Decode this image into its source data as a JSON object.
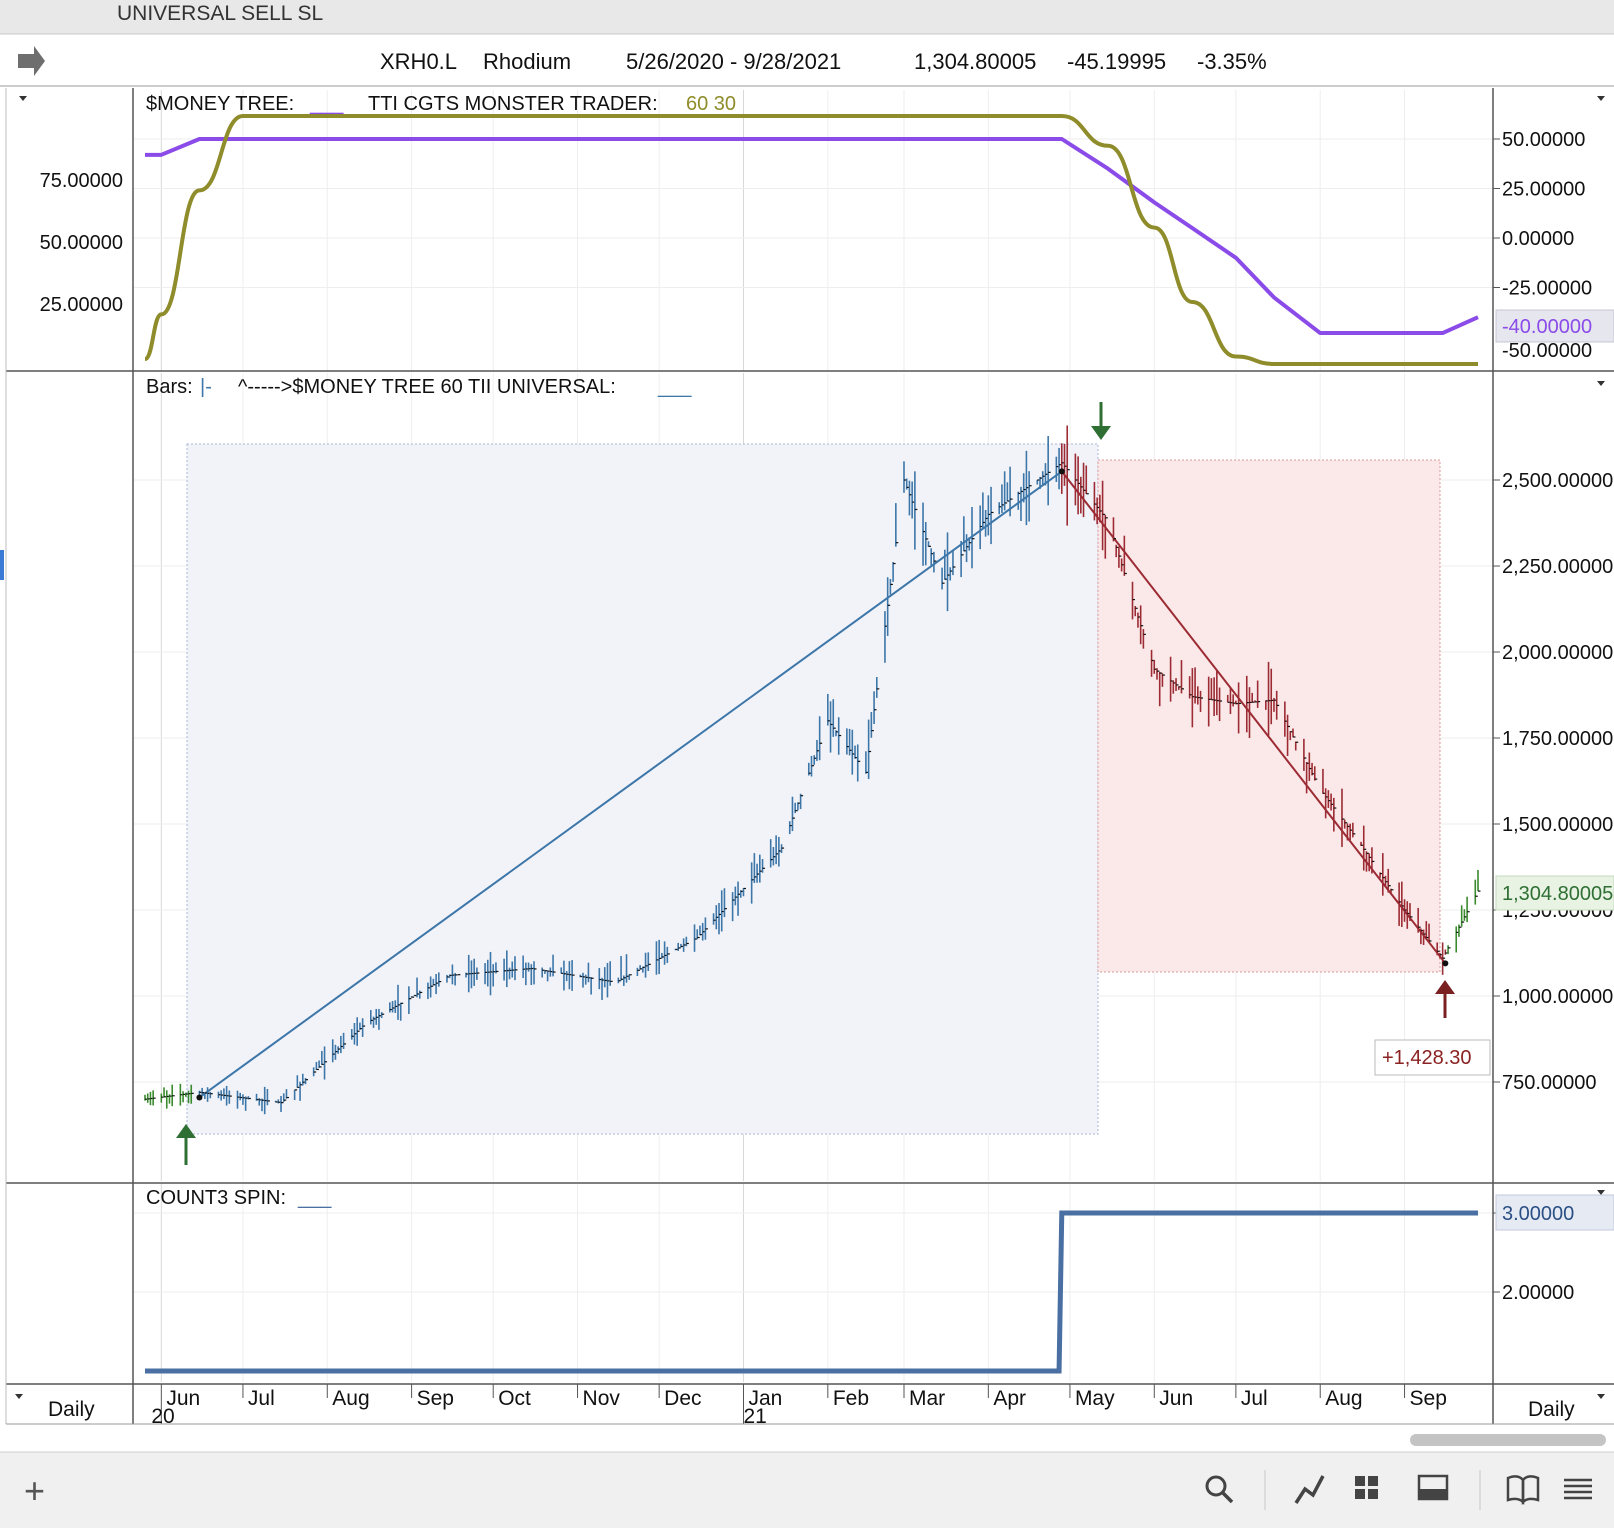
{
  "window": {
    "title": "UNIVERSAL SELL SL"
  },
  "header": {
    "symbol": "XRH0.L",
    "name": "Rhodium",
    "date_range": "5/26/2020 - 9/28/2021",
    "last": "1,304.80005",
    "change": "-45.19995",
    "change_pct": "-3.35%"
  },
  "panel1": {
    "title_a": "$MONEY TREE:",
    "title_a_line": "___",
    "title_b": "TTI CGTS MONSTER TRADER:",
    "title_b_params": "60 30",
    "left_ticks": [
      "75.00000",
      "50.00000",
      "25.00000"
    ],
    "right_ticks": [
      "50.00000",
      "25.00000",
      "0.00000",
      "-25.00000"
    ],
    "right_cut_tick": "-50.00000",
    "current_label": "-40.00000"
  },
  "panel2": {
    "title_a": "Bars:",
    "title_a_line": "|-",
    "title_b": "^----->$MONEY TREE 60 TII UNIVERSAL:",
    "title_b_line": "___",
    "right_ticks": [
      "2,500.00000",
      "2,250.00000",
      "2,000.00000",
      "1,750.00000",
      "1,500.00000",
      "1,250.00000",
      "1,000.00000",
      "750.00000"
    ],
    "current_label": "1,304.80005",
    "trade_label": "+1,428.30"
  },
  "panel3": {
    "title_a": "COUNT3 SPIN:",
    "title_a_line": "___",
    "right_ticks": [
      "3.00000",
      "2.00000"
    ]
  },
  "xaxis": {
    "months": [
      "Jun",
      "Jul",
      "Aug",
      "Sep",
      "Oct",
      "Nov",
      "Dec",
      "Jan",
      "Feb",
      "Mar",
      "Apr",
      "May",
      "Jun",
      "Jul",
      "Aug",
      "Sep"
    ],
    "years": [
      "20",
      "21"
    ],
    "left_period": "Daily",
    "right_period": "Daily"
  },
  "toolbar": {
    "add": "+",
    "icons": [
      "search-icon",
      "draw-line-icon",
      "grid-icon",
      "layout-panel-icon",
      "book-icon",
      "menu-icon"
    ]
  },
  "colors": {
    "purple": "#8a4be8",
    "olive": "#8f8c2b",
    "blue_bar": "#3d76a8",
    "red_bar": "#9c2b34",
    "green_bar": "#3a8a2e",
    "spin_line": "#4a6fa3"
  },
  "chart_data": [
    {
      "type": "line",
      "title": "$MONEY TREE / TTI CGTS MONSTER TRADER 60 30",
      "x": [
        "2020-05-26",
        "2020-06-01",
        "2020-06-15",
        "2020-07-01",
        "2020-07-15",
        "2020-08-01",
        "2020-09-01",
        "2020-10-01",
        "2020-11-01",
        "2020-12-01",
        "2021-01-01",
        "2021-02-01",
        "2021-03-01",
        "2021-04-01",
        "2021-04-28",
        "2021-05-15",
        "2021-06-01",
        "2021-06-15",
        "2021-07-01",
        "2021-07-15",
        "2021-08-01",
        "2021-08-15",
        "2021-09-01",
        "2021-09-15",
        "2021-09-28"
      ],
      "series": [
        {
          "name": "$MONEY TREE",
          "values": [
            42,
            42,
            50,
            50,
            50,
            50,
            50,
            50,
            50,
            50,
            50,
            50,
            50,
            50,
            50,
            35,
            18,
            5,
            -10,
            -30,
            -48,
            -48,
            -48,
            -48,
            -40
          ]
        },
        {
          "name": "TTI CGTS MONSTER TRADER",
          "values": [
            2,
            20,
            70,
            100,
            100,
            100,
            100,
            100,
            100,
            100,
            100,
            100,
            100,
            100,
            100,
            88,
            55,
            25,
            3,
            0,
            0,
            0,
            0,
            0,
            0
          ]
        }
      ],
      "ylim_right": [
        -55,
        60
      ],
      "ylim_left": [
        0,
        100
      ]
    },
    {
      "type": "bar",
      "title": "Bars / $MONEY TREE 60 TII UNIVERSAL",
      "x": [
        "2020-05-26",
        "2020-06-15",
        "2020-07-15",
        "2020-08-15",
        "2020-09-15",
        "2020-10-15",
        "2020-11-15",
        "2020-12-15",
        "2021-01-15",
        "2021-02-01",
        "2021-02-15",
        "2021-03-01",
        "2021-03-15",
        "2021-04-01",
        "2021-04-28",
        "2021-05-15",
        "2021-06-01",
        "2021-06-15",
        "2021-07-01",
        "2021-07-15",
        "2021-08-01",
        "2021-08-15",
        "2021-09-01",
        "2021-09-15",
        "2021-09-28"
      ],
      "values": [
        700,
        720,
        690,
        920,
        1060,
        1080,
        1040,
        1170,
        1430,
        1800,
        1650,
        2500,
        2200,
        2400,
        2550,
        2380,
        1950,
        1870,
        1850,
        1860,
        1600,
        1450,
        1250,
        1110,
        1305
      ],
      "ylim": [
        570,
        2620
      ],
      "long_trade": {
        "entry_date": "2020-06-15",
        "entry": 705,
        "exit_date": "2021-04-28",
        "exit": 2525
      },
      "short_trade": {
        "entry_date": "2021-04-28",
        "entry": 2525,
        "exit_date": "2021-09-16",
        "exit": 1095
      }
    },
    {
      "type": "line",
      "title": "COUNT3 SPIN",
      "x": [
        "2020-05-26",
        "2021-04-27",
        "2021-04-28",
        "2021-09-28"
      ],
      "series": [
        {
          "name": "COUNT3 SPIN",
          "values": [
            1,
            1,
            3,
            3
          ]
        }
      ],
      "ylim": [
        0.95,
        3.3
      ]
    }
  ]
}
